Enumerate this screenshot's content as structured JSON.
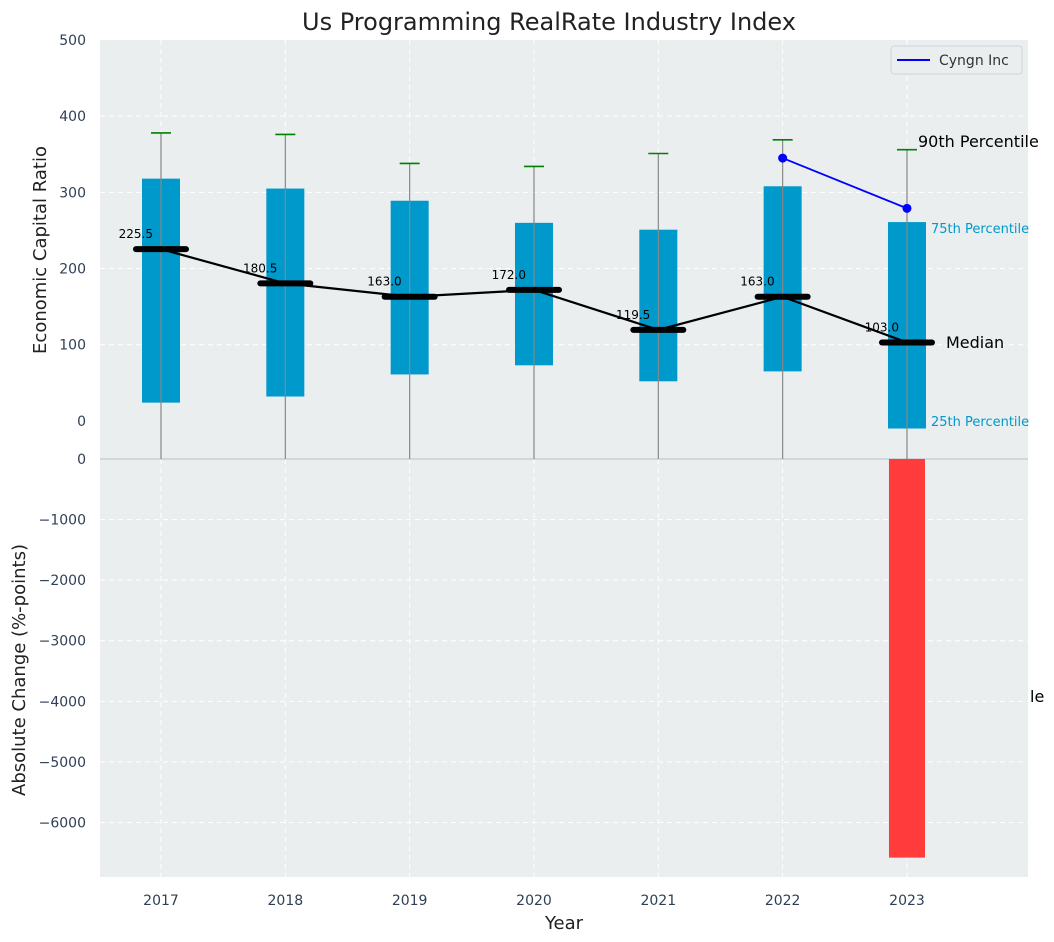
{
  "chart_data": {
    "title": "Us Programming RealRate Industry Index",
    "xlabel": "Year",
    "years": [
      "2017",
      "2018",
      "2019",
      "2020",
      "2021",
      "2022",
      "2023"
    ],
    "top_panel": {
      "type": "box",
      "ylabel": "Economic Capital Ratio",
      "ylim": [
        -50,
        500
      ],
      "yticks": [
        0,
        100,
        200,
        300,
        400,
        500
      ],
      "p25": [
        24,
        32,
        61,
        73,
        52,
        65,
        -10
      ],
      "p75": [
        318,
        305,
        289,
        260,
        251,
        308,
        261
      ],
      "p10": [
        -50,
        -50,
        -50,
        -50,
        -50,
        -50,
        -50
      ],
      "p90": [
        378,
        376,
        338,
        334,
        351,
        369,
        356
      ],
      "median": [
        225.5,
        180.5,
        163.0,
        172.0,
        119.5,
        163.0,
        103.0
      ],
      "median_labels": [
        "225.5",
        "180.5",
        "163.0",
        "172.0",
        "119.5",
        "163.0",
        "103.0"
      ],
      "series": [
        {
          "name": "Cyngn Inc",
          "x": [
            "2022",
            "2023"
          ],
          "values": [
            345,
            279
          ]
        }
      ],
      "annotations": {
        "p90": "90th Percentile",
        "p75": "75th Percentile",
        "median": "Median",
        "p25": "25th Percentile"
      },
      "colors": {
        "box": "#0099cc",
        "median": "#000000",
        "whisker_cap": "#008000",
        "series": "#0000ff"
      },
      "legend_position": "top-right",
      "grid": true
    },
    "bottom_panel": {
      "type": "bar",
      "ylabel": "Absolute Change (%-points)",
      "ylim": [
        -6900,
        0
      ],
      "yticks": [
        0,
        -1000,
        -2000,
        -3000,
        -4000,
        -5000,
        -6000
      ],
      "ytick_labels": [
        "0",
        "−1000",
        "−2000",
        "−3000",
        "−4000",
        "−5000",
        "−6000"
      ],
      "categories": [
        "2023"
      ],
      "values": [
        -6580
      ],
      "color": "#ff3b3b",
      "clipped_text": "le",
      "grid": true
    }
  }
}
